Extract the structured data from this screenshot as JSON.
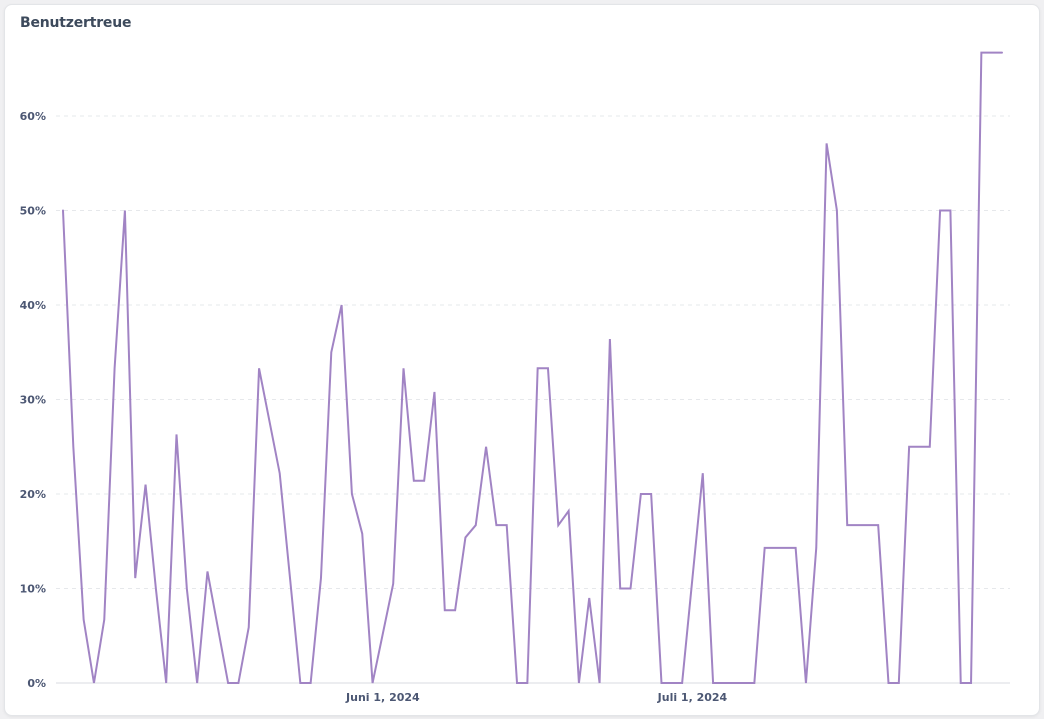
{
  "card": {
    "title": "Benutzertreue"
  },
  "colors": {
    "series": "#a184c4",
    "grid": "#e6e8eb",
    "text": "#4c5773"
  },
  "chart_data": {
    "type": "line",
    "title": "Benutzertreue",
    "xlabel": "",
    "ylabel": "",
    "ylim": [
      0,
      0.7
    ],
    "y_ticks": [
      0,
      0.1,
      0.2,
      0.3,
      0.4,
      0.5,
      0.6
    ],
    "y_tick_labels": [
      "0%",
      "10%",
      "20%",
      "30%",
      "40%",
      "50%",
      "60%"
    ],
    "x_tick_labels": [
      "Juni 1, 2024",
      "Juli 1, 2024"
    ],
    "x_tick_values": [
      "2024-06-01",
      "2024-07-01"
    ],
    "grid": true,
    "legend": "none",
    "x_range": [
      "2024-05-01",
      "2024-08-01"
    ],
    "x": [
      "2024-05-01",
      "2024-05-02",
      "2024-05-03",
      "2024-05-04",
      "2024-05-05",
      "2024-05-06",
      "2024-05-07",
      "2024-05-08",
      "2024-05-09",
      "2024-05-10",
      "2024-05-11",
      "2024-05-12",
      "2024-05-13",
      "2024-05-14",
      "2024-05-15",
      "2024-05-16",
      "2024-05-17",
      "2024-05-18",
      "2024-05-19",
      "2024-05-20",
      "2024-05-22",
      "2024-05-24",
      "2024-05-25",
      "2024-05-26",
      "2024-05-27",
      "2024-05-28",
      "2024-05-29",
      "2024-05-30",
      "2024-05-31",
      "2024-06-02",
      "2024-06-03",
      "2024-06-04",
      "2024-06-05",
      "2024-06-06",
      "2024-06-07",
      "2024-06-08",
      "2024-06-09",
      "2024-06-10",
      "2024-06-11",
      "2024-06-12",
      "2024-06-13",
      "2024-06-14",
      "2024-06-15",
      "2024-06-16",
      "2024-06-17",
      "2024-06-18",
      "2024-06-19",
      "2024-06-20",
      "2024-06-21",
      "2024-06-22",
      "2024-06-23",
      "2024-06-24",
      "2024-06-25",
      "2024-06-26",
      "2024-06-27",
      "2024-06-28",
      "2024-06-29",
      "2024-06-30",
      "2024-07-01",
      "2024-07-02",
      "2024-07-03",
      "2024-07-04",
      "2024-07-05",
      "2024-07-06",
      "2024-07-07",
      "2024-07-08",
      "2024-07-09",
      "2024-07-10",
      "2024-07-11",
      "2024-07-12",
      "2024-07-13",
      "2024-07-14",
      "2024-07-15",
      "2024-07-16",
      "2024-07-17",
      "2024-07-18",
      "2024-07-19",
      "2024-07-20",
      "2024-07-21",
      "2024-07-22",
      "2024-07-23",
      "2024-07-24",
      "2024-07-25",
      "2024-07-26",
      "2024-07-27",
      "2024-07-28",
      "2024-07-29",
      "2024-07-30",
      "2024-07-31"
    ],
    "series": [
      {
        "values": [
          0.5,
          0.25,
          0.067,
          0,
          0.067,
          0.333,
          0.5,
          0.111,
          0.21,
          0.1,
          0,
          0.263,
          0.1,
          0,
          0.118,
          0.059,
          0,
          0,
          0.059,
          0.333,
          0.222,
          0,
          0,
          0.111,
          0.35,
          0.4,
          0.2,
          0.158,
          0,
          0.105,
          0.333,
          0.214,
          0.214,
          0.308,
          0.077,
          0.077,
          0.154,
          0.167,
          0.25,
          0.167,
          0.167,
          0,
          0,
          0.333,
          0.333,
          0.167,
          0.182,
          0,
          0.09,
          0,
          0.364,
          0.1,
          0.1,
          0.2,
          0.2,
          0,
          0,
          0,
          0.111,
          0.222,
          0,
          0,
          0,
          0,
          0,
          0.143,
          0.143,
          0.143,
          0.143,
          0,
          0.143,
          0.571,
          0.5,
          0.167,
          0.167,
          0.167,
          0.167,
          0,
          0,
          0.25,
          0.25,
          0.25,
          0.5,
          0.5,
          0,
          0,
          0.667,
          0.667,
          0.667
        ]
      }
    ]
  }
}
